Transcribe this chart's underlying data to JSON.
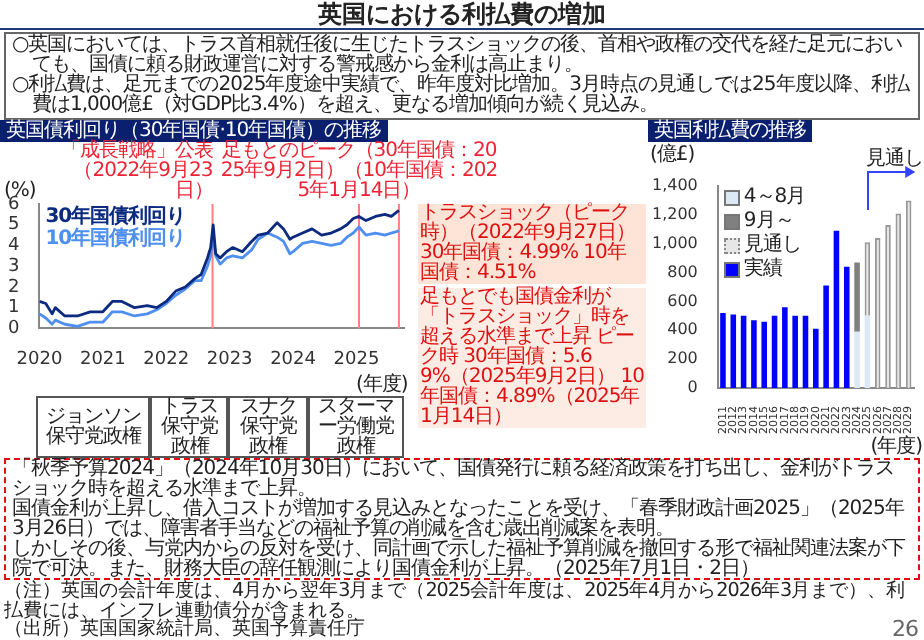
{
  "chart_data": [
    {
      "type": "other",
      "title": "英国における利払費の増加",
      "annotations": [
        "○英国においては、トラス首相就任後に生じたトラスショックの後、首相や政権の交代を経た足元においても、国債に頼る財政運営に対する警戒感から金利は高止まり。",
        "○利払費は、足元までの2025年度途中実績で、昨年度対比増加。3月時点の見通しでは25年度以降、利払費は1,000億£（対GDP比3.4%）を超え、更なる増加傾向が続く見込み。"
      ]
    },
    {
      "type": "line",
      "title": "英国債利回り（30年国債·10年国債）の推移",
      "ylabel": "(%)",
      "xlabel": "(年度)",
      "xlim": [
        2020,
        2025.75
      ],
      "xticks": [
        2020,
        2021,
        2022,
        2023,
        2024,
        2025
      ],
      "ylim": [
        0,
        6
      ],
      "yticks": [
        0,
        1,
        2,
        3,
        4,
        5,
        6
      ],
      "grid": false,
      "legend": false,
      "marker": "none",
      "x": [
        2020.0,
        2020.1,
        2020.2,
        2020.25,
        2020.4,
        2020.6,
        2020.8,
        2021.0,
        2021.15,
        2021.3,
        2021.5,
        2021.7,
        2021.85,
        2022.0,
        2022.15,
        2022.3,
        2022.45,
        2022.55,
        2022.65,
        2022.7,
        2022.74,
        2022.78,
        2022.85,
        2022.95,
        2023.05,
        2023.2,
        2023.35,
        2023.45,
        2023.6,
        2023.75,
        2023.85,
        2023.95,
        2024.0,
        2024.15,
        2024.3,
        2024.45,
        2024.6,
        2024.75,
        2024.85,
        2024.95,
        2025.04,
        2025.15,
        2025.3,
        2025.45,
        2025.55,
        2025.67
      ],
      "series": [
        {
          "name": "30年国債利回り",
          "color": "#0b2a80",
          "values": [
            1.3,
            1.2,
            0.7,
            1.0,
            0.6,
            0.6,
            0.8,
            0.8,
            1.3,
            1.3,
            1.0,
            1.1,
            1.0,
            1.3,
            1.8,
            2.0,
            2.4,
            2.6,
            3.4,
            3.9,
            4.99,
            3.6,
            3.4,
            3.7,
            3.9,
            3.7,
            4.2,
            4.5,
            4.6,
            5.1,
            4.8,
            4.3,
            4.4,
            4.6,
            4.8,
            4.5,
            4.6,
            4.8,
            5.0,
            5.3,
            5.4,
            5.2,
            5.4,
            5.5,
            5.4,
            5.69
          ]
        },
        {
          "name": "10年国債利回り",
          "color": "#4f8fef",
          "values": [
            0.7,
            0.5,
            0.2,
            0.4,
            0.2,
            0.1,
            0.3,
            0.3,
            0.8,
            0.8,
            0.6,
            0.7,
            0.9,
            1.2,
            1.6,
            1.9,
            2.3,
            2.3,
            3.0,
            3.5,
            4.51,
            3.5,
            3.1,
            3.4,
            3.5,
            3.4,
            3.8,
            4.3,
            4.6,
            4.4,
            4.2,
            3.6,
            3.7,
            4.1,
            4.2,
            4.1,
            4.0,
            4.1,
            4.4,
            4.6,
            4.89,
            4.5,
            4.6,
            4.5,
            4.6,
            4.7
          ]
        }
      ],
      "ref_lines": [
        {
          "axis": "x",
          "value": 2022.73,
          "label": "「成長戦略」公表（2022年9月23日）",
          "color": "#ff7f7f"
        },
        {
          "axis": "x",
          "value": 2025.04,
          "label": "足もとのピーク（30年国債：2025年9月2日）（10年国債：2025年1月14日）",
          "color": "#ff7f7f"
        },
        {
          "axis": "x",
          "value": 2025.67,
          "color": "#ff7f7f"
        }
      ],
      "annotations": [
        "トラスショック（ピーク時）（2022年9月27日）30年国債：4.99% 10年国債：4.51%",
        "足もとでも国債金利が「トラスショック」時を超える水準まで上昇 ピーク時 30年国債：5.69%（2025年9月2日） 10年国債：4.89%（2025年1月14日）",
        "ジョンソン保守党政権",
        "トラス保守党政権",
        "スナク保守党政権",
        "スターマー労働党政権"
      ]
    },
    {
      "type": "bar",
      "title": "英国利払費の推移",
      "ylabel": "(億£)",
      "xlabel": "(年度)",
      "categories": [
        "2011",
        "2012",
        "2013",
        "2014",
        "2015",
        "2016",
        "2017",
        "2018",
        "2019",
        "2020",
        "2021",
        "2022",
        "2023",
        "2024",
        "2025",
        "2026",
        "2027",
        "2028",
        "2029"
      ],
      "stacked": true,
      "grid": false,
      "legend": "top left",
      "ylim": [
        0,
        1400
      ],
      "yticks": [
        0,
        200,
        400,
        600,
        800,
        {
          "value": 1000,
          "label": "1,000"
        },
        {
          "value": 1200,
          "label": "1,200"
        },
        {
          "value": 1400,
          "label": "1,400"
        }
      ],
      "series": [
        {
          "name": "4～8月",
          "color": "#dde8f5",
          "values": [
            null,
            null,
            null,
            null,
            null,
            null,
            null,
            null,
            null,
            null,
            null,
            null,
            null,
            390,
            500,
            null,
            null,
            null,
            null
          ]
        },
        {
          "name": "9月～",
          "color": "#808080",
          "values": [
            null,
            null,
            null,
            null,
            null,
            null,
            null,
            null,
            null,
            null,
            null,
            null,
            null,
            480,
            null,
            null,
            null,
            null,
            null
          ]
        },
        {
          "name": "見通し",
          "color": "#e6e6e6",
          "line_style": "dotted",
          "values": [
            null,
            null,
            null,
            null,
            null,
            null,
            null,
            null,
            null,
            null,
            null,
            null,
            null,
            null,
            510,
            1040,
            1130,
            1210,
            1300
          ]
        },
        {
          "name": "実績",
          "color": "#0000ff",
          "values": [
            520,
            510,
            500,
            470,
            460,
            500,
            560,
            500,
            500,
            410,
            710,
            1090,
            840,
            null,
            null,
            null,
            null,
            null,
            null
          ]
        }
      ],
      "annotations": [
        "見通し"
      ]
    },
    {
      "type": "other",
      "annotations": [
        "「秋季予算2024」（2024年10月30日）において、国債発行に頼る経済政策を打ち出し、金利がトラスショック時を超える水準まで上昇。",
        "国債金利が上昇し、借入コストが増加する見込みとなったことを受け、「春季財政計画2025」（2025年3月26日）では、障害者手当などの福祉予算の削減を含む歳出削減案を表明。",
        "しかしその後、与党内からの反対を受け、同計画で示した福祉予算削減を撤回する形で福祉関連法案が下院で可決。また、財務大臣の辞任観測により国債金利が上昇。（2025年7月1日・2日）"
      ]
    },
    {
      "type": "other",
      "annotations": [
        "（注）英国の会計年度は、4月から翌年3月まで（2025会計年度は、2025年4月から2026年3月まで）、利払費には、インフレ連動債分が含まれる。",
        "（出所）英国国家統計局、英国予算責任庁",
        "26"
      ]
    }
  ]
}
